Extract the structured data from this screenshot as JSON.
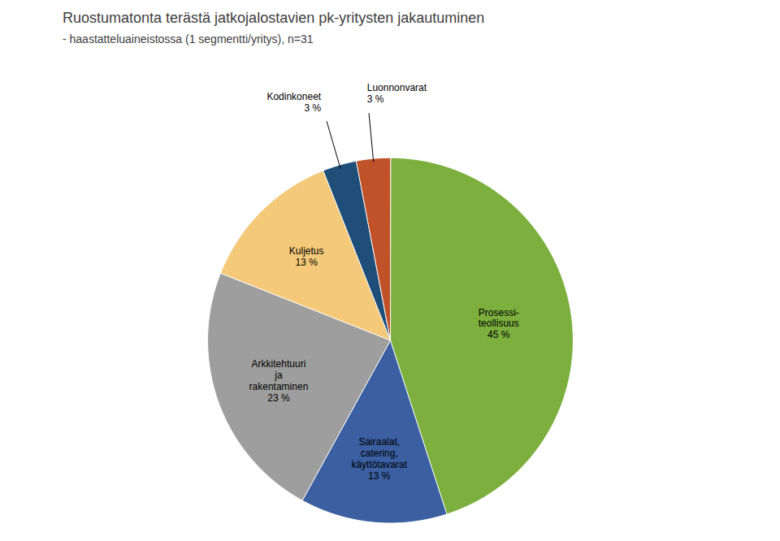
{
  "chart_data": {
    "type": "pie",
    "title": "Ruostumatonta terästä jatkojalostavien pk-yritysten jakautuminen",
    "subtitle": "- haastatteluaineistossa (1 segmentti/yritys), n=31",
    "categories": [
      "Prosessi-\nteollisuus\n45 %",
      "Sairaalat,\ncatering,\nkäyttötavarat\n13 %",
      "Arkkitehtuuri\nja\nrakentaminen\n23 %",
      "Kuljetus\n13 %",
      "Kodinkoneet\n3 %",
      "Luonnonvarat\n3 %"
    ],
    "values": [
      45,
      13,
      23,
      13,
      3,
      3
    ],
    "colors": [
      "#7caf3e",
      "#3b5fa0",
      "#9e9e9e",
      "#f5c97a",
      "#1f4e79",
      "#c0522a"
    ]
  }
}
